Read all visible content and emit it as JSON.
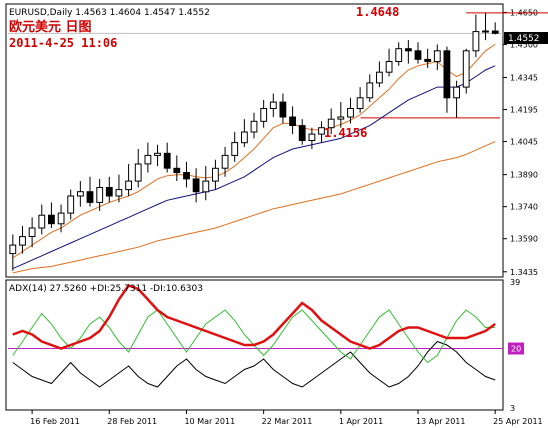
{
  "header": {
    "symbol_line": "EURUSD,Daily  1.4563 1.4604 1.4547 1.4552",
    "title_cn": "欧元美元 日图",
    "timestamp": "2011-4-25 11:06"
  },
  "annotations": {
    "high_label": "1.4648",
    "low_label": "1.4156"
  },
  "current_price": "1.4552",
  "price_axis_ticks": [
    "1.4650",
    "1.4500",
    "1.4345",
    "1.4195",
    "1.4045",
    "1.3890",
    "1.3740",
    "1.3590",
    "1.3435"
  ],
  "date_axis_ticks": [
    "16 Feb 2011",
    "28 Feb 2011",
    "10 Mar 2011",
    "22 Mar 2011",
    "1 Apr 2011",
    "13 Apr 2011",
    "25 Apr 2011"
  ],
  "indicator": {
    "label": "ADX(14) 27.5260 +DI:25.7311 -DI:10.6303",
    "axis_ticks": [
      "39",
      "20",
      "3"
    ],
    "level": "20"
  },
  "colors": {
    "candle": "#000000",
    "ma_fast": "#e07020",
    "ma_slow": "#101080",
    "ma_long": "#e07020",
    "annot_red": "#d00000",
    "adx": "#e01010",
    "plus_di": "#30c030",
    "minus_di": "#000000",
    "level_line": "#c020c0"
  },
  "chart_data": [
    {
      "type": "candlestick",
      "title": "",
      "ylim": [
        1.342,
        1.468
      ],
      "x": [
        "2011-02-14",
        "2011-02-15",
        "2011-02-16",
        "2011-02-17",
        "2011-02-18",
        "2011-02-21",
        "2011-02-22",
        "2011-02-23",
        "2011-02-24",
        "2011-02-25",
        "2011-02-28",
        "2011-03-01",
        "2011-03-02",
        "2011-03-03",
        "2011-03-04",
        "2011-03-07",
        "2011-03-08",
        "2011-03-09",
        "2011-03-10",
        "2011-03-11",
        "2011-03-14",
        "2011-03-15",
        "2011-03-16",
        "2011-03-17",
        "2011-03-18",
        "2011-03-21",
        "2011-03-22",
        "2011-03-23",
        "2011-03-24",
        "2011-03-25",
        "2011-03-28",
        "2011-03-29",
        "2011-03-30",
        "2011-03-31",
        "2011-04-01",
        "2011-04-04",
        "2011-04-05",
        "2011-04-06",
        "2011-04-07",
        "2011-04-08",
        "2011-04-11",
        "2011-04-12",
        "2011-04-13",
        "2011-04-14",
        "2011-04-15",
        "2011-04-18",
        "2011-04-19",
        "2011-04-20",
        "2011-04-21",
        "2011-04-22",
        "2011-04-25"
      ],
      "open": [
        1.352,
        1.356,
        1.36,
        1.364,
        1.37,
        1.366,
        1.371,
        1.379,
        1.381,
        1.376,
        1.383,
        1.379,
        1.382,
        1.386,
        1.394,
        1.398,
        1.399,
        1.392,
        1.39,
        1.387,
        1.381,
        1.386,
        1.392,
        1.398,
        1.404,
        1.409,
        1.414,
        1.42,
        1.423,
        1.416,
        1.412,
        1.405,
        1.408,
        1.411,
        1.415,
        1.416,
        1.42,
        1.425,
        1.432,
        1.437,
        1.442,
        1.448,
        1.447,
        1.443,
        1.442,
        1.447,
        1.425,
        1.43,
        1.447,
        1.456,
        1.4563
      ],
      "high": [
        1.361,
        1.365,
        1.369,
        1.375,
        1.376,
        1.375,
        1.382,
        1.386,
        1.388,
        1.387,
        1.388,
        1.389,
        1.394,
        1.401,
        1.404,
        1.403,
        1.404,
        1.398,
        1.395,
        1.392,
        1.393,
        1.396,
        1.402,
        1.409,
        1.415,
        1.418,
        1.424,
        1.427,
        1.427,
        1.421,
        1.415,
        1.411,
        1.414,
        1.42,
        1.423,
        1.425,
        1.43,
        1.436,
        1.442,
        1.448,
        1.451,
        1.452,
        1.451,
        1.448,
        1.45,
        1.449,
        1.433,
        1.448,
        1.464,
        1.4648,
        1.4604
      ],
      "low": [
        1.344,
        1.352,
        1.355,
        1.361,
        1.364,
        1.362,
        1.368,
        1.374,
        1.374,
        1.372,
        1.376,
        1.376,
        1.379,
        1.383,
        1.39,
        1.393,
        1.39,
        1.386,
        1.383,
        1.376,
        1.377,
        1.382,
        1.388,
        1.395,
        1.402,
        1.406,
        1.411,
        1.416,
        1.413,
        1.408,
        1.403,
        1.401,
        1.404,
        1.408,
        1.411,
        1.413,
        1.418,
        1.423,
        1.43,
        1.435,
        1.44,
        1.441,
        1.441,
        1.439,
        1.438,
        1.418,
        1.4156,
        1.427,
        1.444,
        1.452,
        1.4547
      ],
      "close": [
        1.356,
        1.36,
        1.364,
        1.37,
        1.366,
        1.371,
        1.379,
        1.381,
        1.376,
        1.383,
        1.379,
        1.382,
        1.386,
        1.394,
        1.398,
        1.399,
        1.392,
        1.39,
        1.387,
        1.381,
        1.386,
        1.392,
        1.398,
        1.404,
        1.409,
        1.414,
        1.42,
        1.423,
        1.416,
        1.412,
        1.405,
        1.408,
        1.411,
        1.415,
        1.416,
        1.42,
        1.425,
        1.432,
        1.437,
        1.442,
        1.448,
        1.447,
        1.443,
        1.442,
        1.447,
        1.425,
        1.43,
        1.447,
        1.456,
        1.4563,
        1.4552
      ],
      "overlays": {
        "ma_fast": [
          1.35,
          1.353,
          1.356,
          1.359,
          1.362,
          1.364,
          1.367,
          1.37,
          1.372,
          1.374,
          1.376,
          1.3775,
          1.379,
          1.381,
          1.384,
          1.387,
          1.3885,
          1.389,
          1.389,
          1.388,
          1.3875,
          1.388,
          1.39,
          1.393,
          1.397,
          1.401,
          1.406,
          1.411,
          1.413,
          1.413,
          1.411,
          1.41,
          1.41,
          1.411,
          1.4125,
          1.4145,
          1.417,
          1.421,
          1.425,
          1.429,
          1.434,
          1.438,
          1.44,
          1.441,
          1.442,
          1.438,
          1.435,
          1.437,
          1.442,
          1.447,
          1.45
        ],
        "ma_slow": [
          1.345,
          1.347,
          1.349,
          1.351,
          1.353,
          1.355,
          1.357,
          1.359,
          1.361,
          1.363,
          1.365,
          1.367,
          1.369,
          1.371,
          1.373,
          1.375,
          1.377,
          1.378,
          1.379,
          1.38,
          1.381,
          1.382,
          1.384,
          1.386,
          1.388,
          1.391,
          1.394,
          1.397,
          1.399,
          1.401,
          1.402,
          1.403,
          1.404,
          1.405,
          1.406,
          1.408,
          1.41,
          1.412,
          1.415,
          1.418,
          1.421,
          1.424,
          1.426,
          1.428,
          1.43,
          1.43,
          1.43,
          1.432,
          1.435,
          1.438,
          1.44
        ],
        "ma_long": [
          1.343,
          1.344,
          1.345,
          1.3455,
          1.346,
          1.347,
          1.348,
          1.349,
          1.35,
          1.351,
          1.352,
          1.353,
          1.354,
          1.355,
          1.3565,
          1.358,
          1.359,
          1.36,
          1.361,
          1.362,
          1.363,
          1.364,
          1.3655,
          1.367,
          1.3685,
          1.37,
          1.3715,
          1.373,
          1.374,
          1.375,
          1.376,
          1.377,
          1.378,
          1.379,
          1.38,
          1.3815,
          1.383,
          1.3845,
          1.386,
          1.3875,
          1.389,
          1.3905,
          1.392,
          1.3935,
          1.395,
          1.396,
          1.397,
          1.3985,
          1.4005,
          1.4025,
          1.4045
        ]
      },
      "annotation_levels": [
        1.4648,
        1.4156
      ]
    },
    {
      "type": "line",
      "title": "",
      "ylim": [
        3,
        39
      ],
      "x_count": 51,
      "series": [
        {
          "name": "ADX",
          "values": [
            24,
            25,
            24,
            22,
            21,
            20,
            21,
            22,
            23,
            25,
            29,
            34,
            38,
            37,
            34,
            31,
            29,
            28,
            27,
            26,
            25,
            24,
            23,
            22,
            21,
            21,
            22,
            24,
            27,
            30,
            33,
            31,
            28,
            26,
            24,
            22,
            21,
            20,
            21,
            23,
            25,
            26,
            26,
            25,
            24,
            23,
            23,
            23,
            24,
            25,
            27
          ]
        },
        {
          "name": "+DI",
          "values": [
            18,
            22,
            26,
            30,
            27,
            23,
            20,
            23,
            27,
            29,
            26,
            22,
            19,
            24,
            29,
            31,
            27,
            23,
            19,
            23,
            27,
            29,
            31,
            28,
            24,
            21,
            18,
            21,
            25,
            29,
            31,
            28,
            25,
            22,
            19,
            17,
            21,
            25,
            29,
            31,
            27,
            23,
            19,
            16,
            18,
            23,
            28,
            31,
            29,
            26,
            26
          ]
        },
        {
          "name": "-DI",
          "values": [
            16,
            14,
            12,
            11,
            10,
            13,
            16,
            13,
            11,
            9,
            11,
            13,
            15,
            12,
            10,
            9,
            12,
            15,
            17,
            14,
            12,
            11,
            10,
            12,
            14,
            15,
            17,
            14,
            12,
            10,
            9,
            11,
            13,
            15,
            17,
            19,
            16,
            13,
            11,
            9,
            10,
            12,
            15,
            19,
            22,
            21,
            19,
            16,
            14,
            12,
            11
          ]
        }
      ],
      "reference_level": 20
    }
  ]
}
